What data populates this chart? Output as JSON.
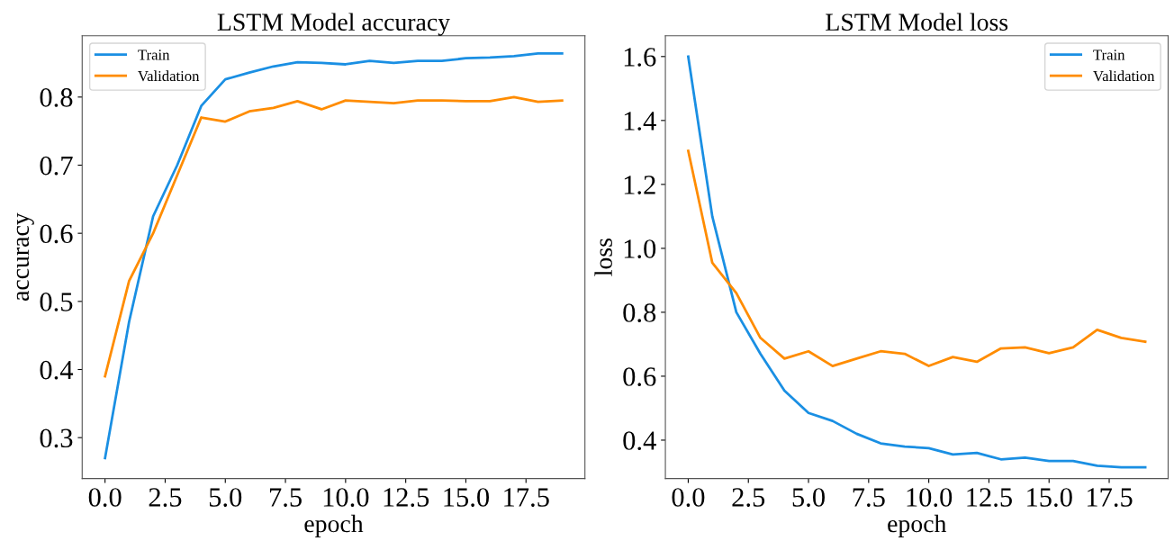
{
  "chart_data": [
    {
      "type": "line",
      "title": "LSTM Model accuracy",
      "xlabel": "epoch",
      "ylabel": "accuracy",
      "x": [
        0,
        1,
        2,
        3,
        4,
        5,
        6,
        7,
        8,
        9,
        10,
        11,
        12,
        13,
        14,
        15,
        16,
        17,
        18,
        19
      ],
      "series": [
        {
          "name": "Train",
          "color": "#1a8fe3",
          "values": [
            0.27,
            0.47,
            0.625,
            0.7,
            0.787,
            0.826,
            0.836,
            0.845,
            0.851,
            0.85,
            0.848,
            0.853,
            0.85,
            0.853,
            0.853,
            0.857,
            0.858,
            0.86,
            0.864,
            0.864
          ]
        },
        {
          "name": "Validation",
          "color": "#ff8c00",
          "values": [
            0.39,
            0.53,
            0.6,
            0.685,
            0.77,
            0.764,
            0.779,
            0.784,
            0.794,
            0.782,
            0.795,
            0.793,
            0.791,
            0.795,
            0.795,
            0.794,
            0.794,
            0.8,
            0.793,
            0.795
          ]
        }
      ],
      "xlim": [
        -0.95,
        19.95
      ],
      "xticks": [
        {
          "value": 0,
          "label": "0.0"
        },
        {
          "value": 2.5,
          "label": "2.5"
        },
        {
          "value": 5,
          "label": "5.0"
        },
        {
          "value": 7.5,
          "label": "7.5"
        },
        {
          "value": 10,
          "label": "10.0"
        },
        {
          "value": 12.5,
          "label": "12.5"
        },
        {
          "value": 15,
          "label": "15.0"
        },
        {
          "value": 17.5,
          "label": "17.5"
        }
      ],
      "ylim": [
        0.24,
        0.89
      ],
      "yticks": [
        0.3,
        0.4,
        0.5,
        0.6,
        0.7,
        0.8
      ],
      "legend": "top left",
      "grid": false,
      "marker": "none",
      "line_style": "solid"
    },
    {
      "type": "line",
      "title": "LSTM Model loss",
      "xlabel": "epoch",
      "ylabel": "loss",
      "x": [
        0,
        1,
        2,
        3,
        4,
        5,
        6,
        7,
        8,
        9,
        10,
        11,
        12,
        13,
        14,
        15,
        16,
        17,
        18,
        19
      ],
      "series": [
        {
          "name": "Train",
          "color": "#1a8fe3",
          "values": [
            1.6,
            1.1,
            0.8,
            0.67,
            0.555,
            0.485,
            0.46,
            0.42,
            0.39,
            0.38,
            0.375,
            0.355,
            0.36,
            0.34,
            0.345,
            0.335,
            0.335,
            0.32,
            0.315,
            0.315
          ]
        },
        {
          "name": "Validation",
          "color": "#ff8c00",
          "values": [
            1.305,
            0.955,
            0.86,
            0.72,
            0.655,
            0.678,
            0.632,
            0.655,
            0.678,
            0.67,
            0.632,
            0.66,
            0.645,
            0.687,
            0.69,
            0.672,
            0.69,
            0.745,
            0.72,
            0.708
          ]
        }
      ],
      "xlim": [
        -0.95,
        19.95
      ],
      "xticks": [
        {
          "value": 0,
          "label": "0.0"
        },
        {
          "value": 2.5,
          "label": "2.5"
        },
        {
          "value": 5,
          "label": "5.0"
        },
        {
          "value": 7.5,
          "label": "7.5"
        },
        {
          "value": 10,
          "label": "10.0"
        },
        {
          "value": 12.5,
          "label": "12.5"
        },
        {
          "value": 15,
          "label": "15.0"
        },
        {
          "value": 17.5,
          "label": "17.5"
        }
      ],
      "ylim": [
        0.28,
        1.665
      ],
      "yticks": [
        {
          "value": 0.4,
          "label": "0.4"
        },
        {
          "value": 0.6,
          "label": "0.6"
        },
        {
          "value": 0.8,
          "label": "0.8"
        },
        {
          "value": 1.0,
          "label": "1.0"
        },
        {
          "value": 1.2,
          "label": "1.2"
        },
        {
          "value": 1.4,
          "label": "1.4"
        },
        {
          "value": 1.6,
          "label": "1.6"
        }
      ],
      "legend": "top right",
      "grid": false,
      "marker": "none",
      "line_style": "solid"
    }
  ]
}
